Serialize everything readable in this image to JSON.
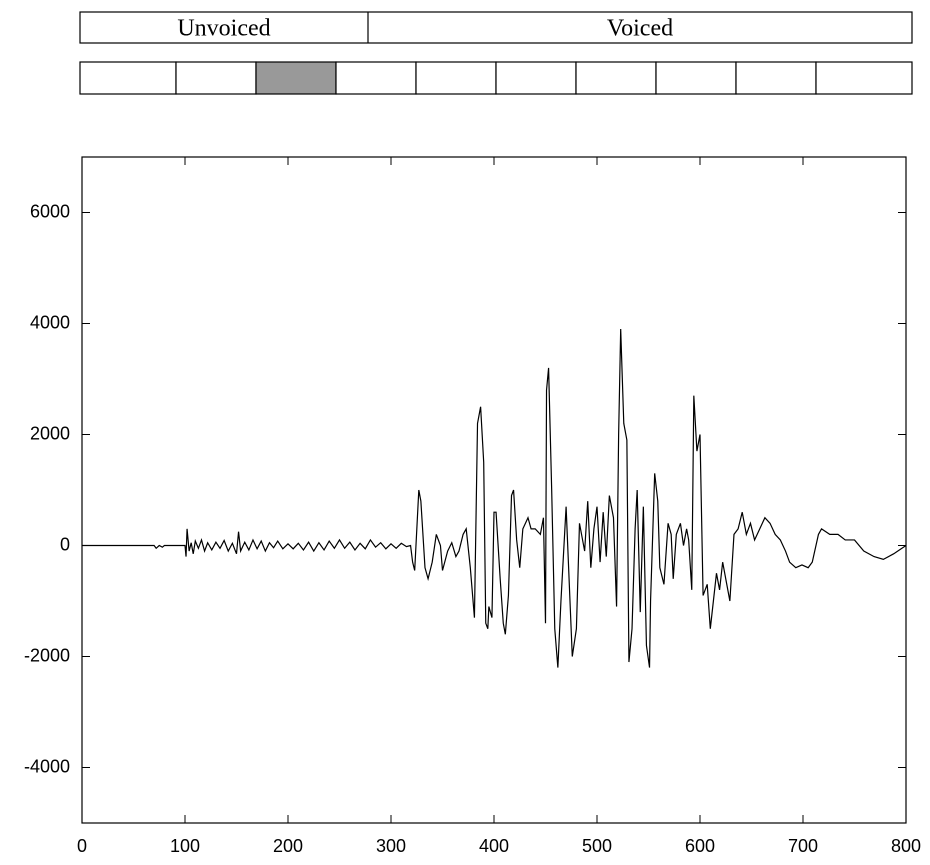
{
  "segmentation": {
    "regions": [
      "Unvoiced",
      "Voiced"
    ],
    "frames_shaded": [
      false,
      false,
      true,
      false,
      false,
      false,
      false,
      false,
      false,
      false
    ]
  },
  "chart_data": {
    "type": "line",
    "x": [
      0,
      70,
      72,
      75,
      78,
      80,
      100,
      101,
      102,
      104,
      106,
      108,
      110,
      113,
      116,
      119,
      122,
      126,
      130,
      134,
      138,
      142,
      146,
      150,
      152,
      154,
      158,
      162,
      166,
      170,
      174,
      178,
      182,
      186,
      190,
      195,
      200,
      205,
      210,
      215,
      220,
      225,
      230,
      235,
      240,
      245,
      250,
      255,
      260,
      265,
      270,
      275,
      280,
      285,
      290,
      295,
      300,
      305,
      310,
      315,
      319,
      321,
      323,
      327,
      329,
      333,
      336,
      340,
      344,
      348,
      350,
      355,
      359,
      363,
      366,
      370,
      373,
      377,
      381,
      384,
      387,
      390,
      392,
      394,
      395,
      398,
      400,
      402,
      406,
      409,
      411,
      414,
      417,
      419,
      422,
      425,
      428,
      433,
      436,
      440,
      445,
      448,
      450,
      451,
      453,
      456,
      459,
      462,
      465,
      470,
      472,
      476,
      480,
      483,
      488,
      491,
      494,
      497,
      500,
      503,
      506,
      509,
      512,
      516,
      519,
      521,
      523,
      526,
      529,
      531,
      534,
      537,
      539,
      542,
      545,
      548,
      551,
      552,
      556,
      559,
      561,
      565,
      569,
      572,
      574,
      577,
      581,
      584,
      587,
      589,
      592,
      594,
      597,
      600,
      603,
      607,
      610,
      613,
      616,
      619,
      622,
      626,
      629,
      633,
      637,
      641,
      645,
      649,
      653,
      658,
      663,
      668,
      673,
      678,
      683,
      687,
      693,
      699,
      705,
      709,
      715,
      718,
      726,
      734,
      741,
      750,
      759,
      769,
      778,
      788,
      800
    ],
    "series": [
      {
        "color": "#000000",
        "values": [
          0,
          0,
          -50,
          0,
          -30,
          0,
          0,
          -200,
          300,
          -100,
          50,
          -150,
          80,
          -50,
          100,
          -100,
          50,
          -80,
          60,
          -50,
          90,
          -100,
          40,
          -150,
          250,
          -100,
          60,
          -80,
          100,
          -60,
          80,
          -100,
          50,
          -40,
          80,
          -60,
          30,
          -60,
          40,
          -80,
          60,
          -100,
          50,
          -80,
          80,
          -50,
          100,
          -50,
          60,
          -80,
          40,
          -60,
          100,
          -30,
          50,
          -60,
          30,
          -50,
          40,
          -20,
          0,
          -300,
          -450,
          1000,
          800,
          -400,
          -600,
          -300,
          200,
          0,
          -450,
          -100,
          50,
          -200,
          -100,
          200,
          300,
          -400,
          -1300,
          2200,
          2500,
          1500,
          -1400,
          -1500,
          -1100,
          -1300,
          600,
          600,
          -600,
          -1400,
          -1600,
          -900,
          900,
          1000,
          100,
          -400,
          300,
          500,
          300,
          300,
          200,
          500,
          -1400,
          2800,
          3200,
          1000,
          -1500,
          -2200,
          -1000,
          700,
          -200,
          -2000,
          -1500,
          400,
          -100,
          800,
          -400,
          300,
          700,
          -300,
          600,
          -200,
          900,
          500,
          -1100,
          2000,
          3900,
          2200,
          1900,
          -2100,
          -1500,
          300,
          1000,
          -1200,
          700,
          -1800,
          -2200,
          -1000,
          1300,
          800,
          -400,
          -700,
          400,
          200,
          -600,
          200,
          400,
          0,
          300,
          100,
          -800,
          2700,
          1700,
          2000,
          -900,
          -700,
          -1500,
          -1000,
          -500,
          -800,
          -300,
          -700,
          -1000,
          200,
          300,
          600,
          200,
          400,
          100,
          300,
          500,
          400,
          200,
          100,
          -100,
          -300,
          -400,
          -350,
          -400,
          -300,
          200,
          300,
          200,
          200,
          100,
          100,
          -100,
          -200,
          -250,
          -150,
          0
        ]
      }
    ],
    "xlim": [
      0,
      800
    ],
    "xticks": [
      0,
      100,
      200,
      300,
      400,
      500,
      600,
      700,
      800
    ],
    "ylim": [
      -5000,
      7000
    ],
    "yticks": [
      -4000,
      -2000,
      0,
      2000,
      4000,
      6000
    ]
  }
}
